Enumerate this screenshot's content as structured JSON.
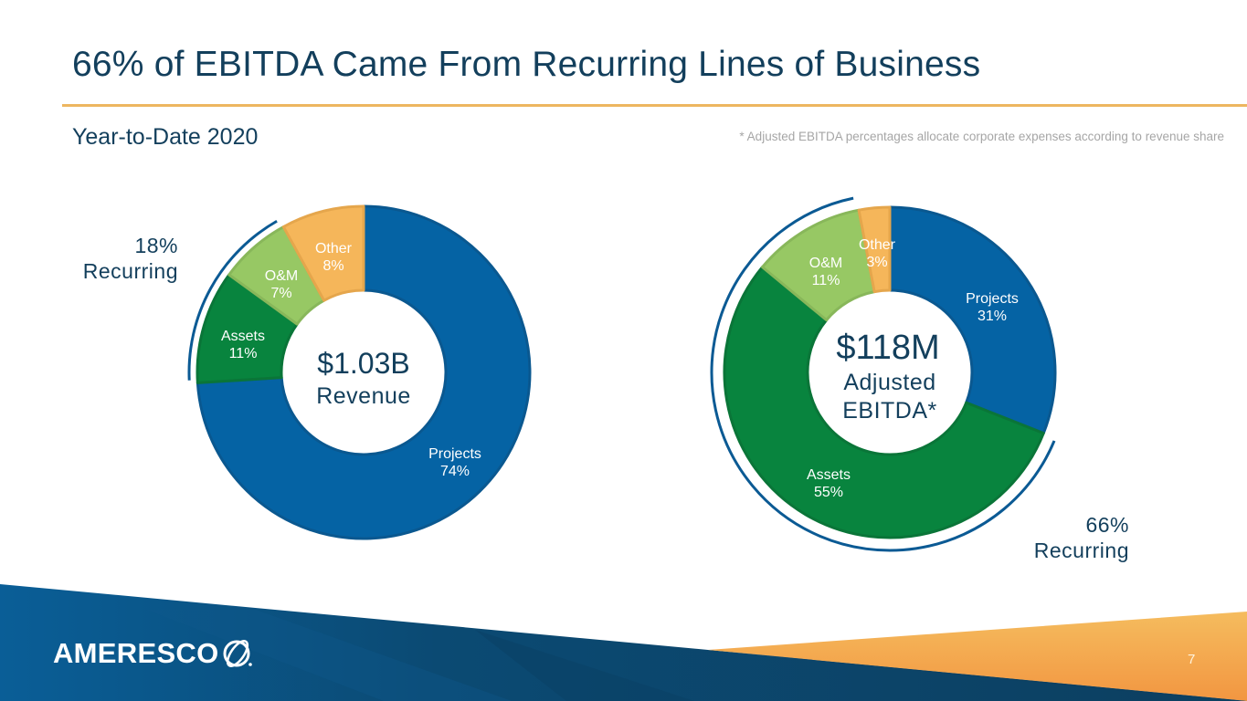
{
  "slide": {
    "title": "66% of EBITDA Came From Recurring Lines of Business",
    "subtitle": "Year-to-Date 2020",
    "footnote": "* Adjusted EBITDA percentages allocate corporate expenses according to revenue share",
    "page_number": "7",
    "logo_text": "AMERESCO"
  },
  "colors": {
    "projects": "#0563A4",
    "assets": "#08843E",
    "om": "#97C864",
    "other": "#F5B65A",
    "text": "#133F5C",
    "accent_rule": "#EDB660"
  },
  "chart_data": [
    {
      "type": "pie",
      "variant": "donut",
      "title": "Revenue",
      "center_value": "$1.03B",
      "center_label": "Revenue",
      "categories": [
        "Projects",
        "Assets",
        "O&M",
        "Other"
      ],
      "values": [
        74,
        11,
        7,
        8
      ],
      "labels": [
        "74%",
        "11%",
        "7%",
        "8%"
      ],
      "unit": "%",
      "recurring": {
        "value": "18%",
        "label": "Recurring",
        "categories": [
          "Assets",
          "O&M"
        ],
        "placement": "upper-left"
      }
    },
    {
      "type": "pie",
      "variant": "donut",
      "title": "Adjusted EBITDA*",
      "center_value": "$118M",
      "center_label_line1": "Adjusted",
      "center_label_line2": "EBITDA*",
      "categories": [
        "Projects",
        "Assets",
        "O&M",
        "Other"
      ],
      "values": [
        31,
        55,
        11,
        3
      ],
      "labels": [
        "31%",
        "55%",
        "11%",
        "3%"
      ],
      "unit": "%",
      "recurring": {
        "value": "66%",
        "label": "Recurring",
        "categories": [
          "Assets",
          "O&M"
        ],
        "placement": "bottom-right"
      }
    }
  ]
}
